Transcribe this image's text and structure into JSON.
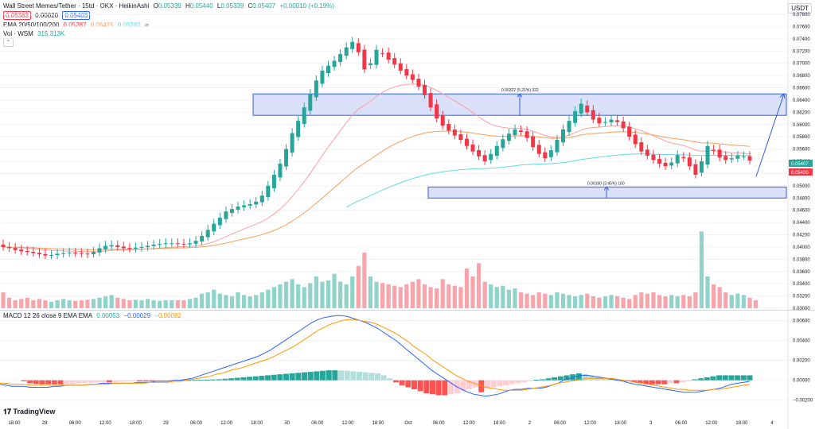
{
  "header": {
    "title": "Wall Street Memes/Tether · 15td · OKX · HeikinAshi",
    "bid": "0.05383",
    "spread": "0.00020",
    "ask": "0.05403",
    "ohlc": {
      "o_label": "O",
      "o": "0.05339",
      "h_label": "H",
      "h": "0.05440",
      "l_label": "L",
      "l": "0.05339",
      "c_label": "C",
      "c": "0.05407",
      "change": "+0.00010 (+0.19%)"
    },
    "ema_label": "EMA 20/50/100/200",
    "ema_values": [
      "0.05287",
      "0.05415",
      "0.05287"
    ],
    "vol_label": "Vol · WSM",
    "vol_value": "315.313K",
    "macd_label": "MACD 12 26 close 9 EMA EMA",
    "macd_values": [
      "0.00053",
      "−0.00029",
      "−0.00082"
    ],
    "currency_button": "USDT",
    "logo": "TradingView"
  },
  "colors": {
    "up": "#26a69a",
    "down": "#f23645",
    "ema20": "#f7a1a1",
    "ema50": "#f5a05a",
    "ema100": "#66d9e0",
    "zone_fill": "#c5cdf7",
    "zone_stroke": "#2f5de0",
    "macd_line": "#2962ff",
    "signal_line": "#ff9800"
  },
  "chart_data": [
    {
      "type": "candlestick",
      "price_axis": {
        "range": [
          0.03,
          0.078
        ],
        "ticks": [
          "0.07800",
          "0.07600",
          "0.07400",
          "0.07200",
          "0.07000",
          "0.06800",
          "0.06600",
          "0.06400",
          "0.06200",
          "0.06000",
          "0.05800",
          "0.05600",
          "0.05400",
          "0.05200",
          "0.05000",
          "0.04800",
          "0.04600",
          "0.04400",
          "0.04200",
          "0.04000",
          "0.03800",
          "0.03600",
          "0.03400",
          "0.03200",
          "0.03000"
        ]
      },
      "x_ticks": [
        "18:00",
        "28",
        "06:00",
        "12:00",
        "18:00",
        "29",
        "06:00",
        "12:00",
        "18:00",
        "30",
        "06:00",
        "12:00",
        "18:00",
        "Oct",
        "06:00",
        "12:00",
        "18:00",
        "2",
        "06:00",
        "12:00",
        "18:00",
        "3",
        "06:00",
        "12:00",
        "18:00",
        "4"
      ],
      "closes": [
        0.04,
        0.0398,
        0.0395,
        0.0393,
        0.0392,
        0.039,
        0.0388,
        0.0386,
        0.0387,
        0.0389,
        0.039,
        0.0391,
        0.039,
        0.0389,
        0.0388,
        0.0392,
        0.0398,
        0.0402,
        0.0403,
        0.04,
        0.0398,
        0.0397,
        0.0399,
        0.04,
        0.0402,
        0.0404,
        0.0405,
        0.0406,
        0.0406,
        0.0405,
        0.0404,
        0.0406,
        0.041,
        0.0418,
        0.0428,
        0.0438,
        0.0448,
        0.0458,
        0.0462,
        0.0466,
        0.0468,
        0.047,
        0.0474,
        0.0484,
        0.05,
        0.0518,
        0.0536,
        0.056,
        0.0586,
        0.0606,
        0.0628,
        0.065,
        0.0672,
        0.0688,
        0.0696,
        0.0704,
        0.0715,
        0.0726,
        0.0735,
        0.0718,
        0.069,
        0.07,
        0.0722,
        0.0716,
        0.0706,
        0.0698,
        0.0688,
        0.068,
        0.0673,
        0.0662,
        0.0648,
        0.0628,
        0.061,
        0.0598,
        0.059,
        0.0582,
        0.0575,
        0.0565,
        0.0556,
        0.0548,
        0.054,
        0.0552,
        0.0565,
        0.0576,
        0.0585,
        0.0592,
        0.0588,
        0.0578,
        0.0563,
        0.0552,
        0.0545,
        0.0558,
        0.0575,
        0.0592,
        0.0606,
        0.0622,
        0.0634,
        0.062,
        0.0608,
        0.0602,
        0.0604,
        0.0608,
        0.0604,
        0.0594,
        0.058,
        0.0568,
        0.0556,
        0.0549,
        0.0542,
        0.0536,
        0.0532,
        0.0538,
        0.055,
        0.0545,
        0.0532,
        0.0518,
        0.054,
        0.0565,
        0.0557,
        0.0546,
        0.0542,
        0.0545,
        0.0549,
        0.0548,
        0.0541
      ],
      "price_levels": [
        {
          "label": "0.05407",
          "color": "#26a69a"
        },
        {
          "label": "0.05400",
          "color": "#f23645"
        }
      ],
      "zones": [
        {
          "from": 0.0615,
          "to": 0.065,
          "label": "0.00322 (5.21%) 322"
        },
        {
          "from": 0.048,
          "to": 0.0498,
          "label": "0.00160 (3.45%) 160"
        }
      ],
      "volume": [
        0.6,
        0.4,
        0.3,
        0.35,
        0.4,
        0.3,
        0.35,
        0.3,
        0.25,
        0.3,
        0.35,
        0.3,
        0.28,
        0.3,
        0.32,
        0.35,
        0.4,
        0.45,
        0.5,
        0.4,
        0.35,
        0.3,
        0.32,
        0.3,
        0.35,
        0.3,
        0.28,
        0.3,
        0.3,
        0.3,
        0.3,
        0.35,
        0.4,
        0.55,
        0.6,
        0.7,
        0.55,
        0.5,
        0.45,
        0.6,
        0.5,
        0.45,
        0.5,
        0.6,
        0.7,
        0.8,
        0.9,
        1.0,
        1.1,
        0.9,
        0.8,
        0.95,
        1.2,
        1.0,
        1.05,
        1.3,
        1.0,
        0.9,
        1.2,
        1.6,
        2.1,
        1.2,
        1.0,
        0.95,
        0.9,
        0.85,
        0.8,
        0.9,
        1.0,
        1.1,
        0.9,
        0.8,
        0.75,
        1.1,
        0.9,
        0.85,
        0.8,
        1.5,
        1.2,
        1.7,
        1.0,
        0.9,
        0.8,
        0.85,
        0.7,
        0.75,
        0.6,
        0.55,
        0.5,
        0.6,
        0.55,
        0.5,
        0.6,
        0.55,
        0.5,
        0.45,
        0.5,
        0.55,
        0.45,
        0.4,
        0.45,
        0.5,
        0.45,
        0.4,
        0.35,
        0.5,
        0.6,
        0.55,
        0.6,
        0.5,
        0.45,
        0.5,
        0.45,
        0.5,
        0.45,
        0.6,
        2.9,
        1.2,
        0.9,
        0.8,
        0.6,
        0.5,
        0.55,
        0.5,
        0.4,
        0.3
      ]
    },
    {
      "type": "macd",
      "axis_ticks": [
        "0.00600",
        "0.00400",
        "0.00200",
        "0.00000",
        "−0.00200"
      ],
      "range": [
        -0.0025,
        0.0066
      ],
      "histogram": [
        -0.0001,
        -0.0003,
        -0.00035,
        -0.0004,
        -0.0004,
        -0.0004,
        -0.0004,
        -0.00038,
        -0.00035,
        -0.0003,
        -0.00028,
        -0.00025,
        -0.00022,
        -0.0002,
        -0.0002,
        -0.00018,
        -0.00015,
        -0.00012,
        -0.0001,
        -0.0001,
        -0.0001,
        -0.0001,
        -8e-05,
        -6e-05,
        -4e-05,
        -2e-05,
        0.0,
        2e-05,
        3e-05,
        4e-05,
        5e-05,
        8e-05,
        0.0001,
        0.00015,
        0.0002,
        0.00025,
        0.0003,
        0.00035,
        0.0004,
        0.00045,
        0.0005,
        0.00055,
        0.0006,
        0.00065,
        0.0007,
        0.00075,
        0.0008,
        0.00085,
        0.0009,
        0.00095,
        0.001,
        0.001,
        0.00098,
        0.00095,
        0.0009,
        0.00085,
        0.0008,
        0.00075,
        0.0007,
        0.0005,
        0.0002,
        -0.0002,
        -0.0005,
        -0.0007,
        -0.0009,
        -0.0011,
        -0.0013,
        -0.0014,
        -0.0015,
        -0.0015,
        -0.0014,
        -0.0013,
        -0.0011,
        -0.0009,
        -0.0007,
        -0.0012,
        -0.0008,
        -0.0007,
        -0.0006,
        -0.0005,
        -0.0004,
        -0.0003,
        -0.0002,
        -0.0001,
        5e-05,
        0.0001,
        0.0002,
        0.0003,
        0.0004,
        0.0005,
        0.0006,
        0.0007,
        0.0006,
        0.0005,
        0.0004,
        0.0003,
        0.0002,
        0.0001,
        0.0,
        -0.0001,
        -0.0002,
        -0.0003,
        -0.0004,
        -0.0004,
        -0.0004,
        -0.0004,
        -0.0003,
        -0.0003,
        -0.0002,
        -0.0001,
        0.0001,
        0.0002,
        0.0003,
        0.0004,
        0.0005,
        0.0005,
        0.0005,
        0.0005,
        0.0005,
        0.0005
      ],
      "macd": [
        -0.0004,
        -0.0005,
        -0.0006,
        -0.0006,
        -0.0006,
        -0.0007,
        -0.0007,
        -0.0007,
        -0.0007,
        -0.0006,
        -0.0006,
        -0.0005,
        -0.0005,
        -0.0005,
        -0.0005,
        -0.0004,
        -0.0004,
        -0.0003,
        -0.0003,
        -0.0003,
        -0.0003,
        -0.0003,
        -0.0003,
        -0.0002,
        -0.0002,
        -0.0002,
        -0.0001,
        -0.0001,
        -0.0001,
        0.0,
        0.0,
        0.0001,
        0.0002,
        0.0004,
        0.0006,
        0.0008,
        0.001,
        0.0012,
        0.0014,
        0.0016,
        0.0018,
        0.002,
        0.0022,
        0.0024,
        0.0027,
        0.003,
        0.0034,
        0.0038,
        0.0042,
        0.0046,
        0.005,
        0.0054,
        0.0058,
        0.0061,
        0.0063,
        0.0064,
        0.0065,
        0.0065,
        0.0064,
        0.0062,
        0.006,
        0.0058,
        0.0055,
        0.0052,
        0.0048,
        0.0044,
        0.004,
        0.0035,
        0.003,
        0.0025,
        0.002,
        0.0015,
        0.001,
        0.0006,
        0.0002,
        -0.0002,
        -0.0006,
        -0.0009,
        -0.0012,
        -0.0014,
        -0.0015,
        -0.0016,
        -0.0015,
        -0.0014,
        -0.0012,
        -0.001,
        -0.0009,
        -0.0009,
        -0.0008,
        -0.0008,
        -0.0008,
        -0.0007,
        -0.0005,
        -0.0003,
        0.0,
        0.0002,
        0.0004,
        0.0005,
        0.0005,
        0.0004,
        0.0003,
        0.0002,
        0.0001,
        0.0,
        -0.0001,
        -0.0003,
        -0.0004,
        -0.0005,
        -0.0006,
        -0.0007,
        -0.0008,
        -0.0009,
        -0.001,
        -0.0011,
        -0.0012,
        -0.0012,
        -0.0012,
        -0.0011,
        -0.001,
        -0.0009,
        -0.0008,
        -0.0006,
        -0.0004,
        -0.0003,
        -0.0002,
        -0.0001
      ],
      "signal": [
        -0.0003,
        -0.0003,
        -0.0004,
        -0.0004,
        -0.0004,
        -0.0005,
        -0.0005,
        -0.0005,
        -0.0005,
        -0.0005,
        -0.0005,
        -0.0005,
        -0.0005,
        -0.0005,
        -0.0005,
        -0.0004,
        -0.0004,
        -0.0004,
        -0.0004,
        -0.0003,
        -0.0003,
        -0.0003,
        -0.0003,
        -0.0003,
        -0.0003,
        -0.0002,
        -0.0002,
        -0.0002,
        -0.0002,
        -0.0001,
        -0.0001,
        0.0,
        0.0001,
        0.0002,
        0.0003,
        0.0004,
        0.0006,
        0.0007,
        0.0009,
        0.0011,
        0.0012,
        0.0014,
        0.0016,
        0.0018,
        0.002,
        0.0022,
        0.0025,
        0.0028,
        0.0031,
        0.0034,
        0.0038,
        0.0042,
        0.0046,
        0.005,
        0.0053,
        0.0056,
        0.0058,
        0.006,
        0.0061,
        0.0061,
        0.006,
        0.0059,
        0.0058,
        0.0056,
        0.0053,
        0.005,
        0.0047,
        0.0043,
        0.0039,
        0.0034,
        0.003,
        0.0026,
        0.0021,
        0.0017,
        0.0013,
        0.0009,
        0.0005,
        0.0002,
        -0.0001,
        -0.0003,
        -0.0005,
        -0.0007,
        -0.0008,
        -0.0009,
        -0.001,
        -0.001,
        -0.001,
        -0.001,
        -0.0009,
        -0.0008,
        -0.0007,
        -0.0006,
        -0.0005,
        -0.0003,
        -0.0002,
        -0.0001,
        0.0,
        0.0001,
        0.0002,
        0.0002,
        0.0002,
        0.0002,
        0.0002,
        0.0001,
        0.0,
        -0.0001,
        -0.0002,
        -0.0003,
        -0.0004,
        -0.0005,
        -0.0006,
        -0.0007,
        -0.0008,
        -0.0009,
        -0.0009,
        -0.001,
        -0.001,
        -0.001,
        -0.001,
        -0.0009,
        -0.0009,
        -0.0008,
        -0.0007,
        -0.0006,
        -0.0005,
        -0.0004
      ]
    }
  ]
}
